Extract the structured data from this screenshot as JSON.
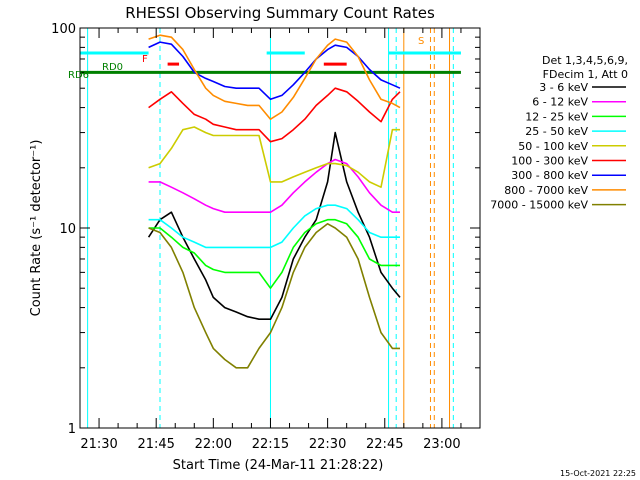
{
  "chart_data": {
    "type": "line",
    "title": "RHESSI Observing Summary Count Rates",
    "xlabel": "Start Time (24-Mar-11 21:28:22)",
    "ylabel": "Count Rate (s⁻¹ detector⁻¹)",
    "yscale": "log",
    "ylim": [
      1,
      100
    ],
    "xlim": [
      "21:25",
      "23:10"
    ],
    "x_ticks": [
      "21:30",
      "21:45",
      "22:00",
      "22:15",
      "22:30",
      "22:45",
      "23:00"
    ],
    "y_ticks": [
      "1",
      "10",
      "100"
    ],
    "footer_date": "15-Oct-2021 22:25",
    "legend": {
      "header": [
        "Det 1,3,4,5,6,9,",
        "FDecim 1, Att 0"
      ],
      "entries": [
        {
          "label": "3 - 6 keV",
          "color": "#000000"
        },
        {
          "label": "6 - 12 keV",
          "color": "#ff00ff"
        },
        {
          "label": "12 - 25 keV",
          "color": "#00ff00"
        },
        {
          "label": "25 - 50 keV",
          "color": "#00ffff"
        },
        {
          "label": "50 - 100 keV",
          "color": "#cccc00"
        },
        {
          "label": "100 - 300 keV",
          "color": "#ff0000"
        },
        {
          "label": "300 - 800 keV",
          "color": "#0000ff"
        },
        {
          "label": "800 - 7000 keV",
          "color": "#ff8c00"
        },
        {
          "label": "7000 - 15000 keV",
          "color": "#808000"
        }
      ]
    },
    "annotations": {
      "rd0": "RD0",
      "rd6": "RD6",
      "f": "F",
      "s": "S",
      "rd0_level": 75,
      "rd6_level": 60
    },
    "series": [
      {
        "name": "3 - 6 keV",
        "color": "#000000",
        "x": [
          "21:43",
          "21:46",
          "21:49",
          "21:52",
          "21:55",
          "21:58",
          "22:00",
          "22:03",
          "22:06",
          "22:09",
          "22:12",
          "22:15",
          "22:18",
          "22:21",
          "22:24",
          "22:27",
          "22:30",
          "22:32",
          "22:35",
          "22:38",
          "22:41",
          "22:44",
          "22:47",
          "22:49"
        ],
        "y": [
          9,
          11,
          12,
          9,
          7,
          5.5,
          4.5,
          4,
          3.8,
          3.6,
          3.5,
          3.5,
          4.5,
          7,
          9,
          11,
          17,
          30,
          17,
          12,
          9,
          6,
          5,
          4.5
        ]
      },
      {
        "name": "6 - 12 keV",
        "color": "#ff00ff",
        "x": [
          "21:43",
          "21:46",
          "21:49",
          "21:52",
          "21:55",
          "21:58",
          "22:00",
          "22:03",
          "22:06",
          "22:09",
          "22:12",
          "22:15",
          "22:18",
          "22:21",
          "22:24",
          "22:27",
          "22:30",
          "22:32",
          "22:35",
          "22:38",
          "22:41",
          "22:44",
          "22:47",
          "22:49"
        ],
        "y": [
          17,
          17,
          16,
          15,
          14,
          13,
          12.5,
          12,
          12,
          12,
          12,
          12,
          13,
          15,
          17,
          19,
          21,
          22,
          21,
          18,
          15,
          13,
          12,
          12
        ]
      },
      {
        "name": "12 - 25 keV",
        "color": "#00ff00",
        "x": [
          "21:43",
          "21:46",
          "21:49",
          "21:52",
          "21:55",
          "21:58",
          "22:00",
          "22:03",
          "22:06",
          "22:09",
          "22:12",
          "22:15",
          "22:18",
          "22:21",
          "22:24",
          "22:27",
          "22:30",
          "22:32",
          "22:35",
          "22:38",
          "22:41",
          "22:44",
          "22:47",
          "22:49"
        ],
        "y": [
          10,
          10,
          9,
          8,
          7.5,
          6.5,
          6.2,
          6,
          6,
          6,
          6,
          5,
          6,
          8,
          9.5,
          10.5,
          11,
          11,
          10.5,
          9,
          7,
          6.5,
          6.5,
          6.5
        ]
      },
      {
        "name": "25 - 50 keV",
        "color": "#00ffff",
        "x": [
          "21:43",
          "21:46",
          "21:49",
          "21:52",
          "21:55",
          "21:58",
          "22:00",
          "22:03",
          "22:06",
          "22:09",
          "22:12",
          "22:15",
          "22:18",
          "22:21",
          "22:24",
          "22:27",
          "22:30",
          "22:32",
          "22:35",
          "22:38",
          "22:41",
          "22:44",
          "22:47",
          "22:49"
        ],
        "y": [
          11,
          11,
          10,
          9,
          8.5,
          8,
          8,
          8,
          8,
          8,
          8,
          8,
          8.5,
          10,
          11.5,
          12.5,
          13,
          13,
          12.5,
          11,
          9.5,
          9,
          9,
          9
        ]
      },
      {
        "name": "50 - 100 keV",
        "color": "#cccc00",
        "x": [
          "21:43",
          "21:46",
          "21:49",
          "21:52",
          "21:55",
          "21:58",
          "22:00",
          "22:03",
          "22:06",
          "22:09",
          "22:12",
          "22:15",
          "22:18",
          "22:21",
          "22:24",
          "22:27",
          "22:30",
          "22:32",
          "22:35",
          "22:38",
          "22:41",
          "22:44",
          "22:47",
          "22:49"
        ],
        "y": [
          20,
          21,
          25,
          31,
          32,
          30,
          29,
          29,
          29,
          29,
          29,
          17,
          17,
          18,
          19,
          20,
          21,
          21,
          20.5,
          19,
          17,
          16,
          31,
          31
        ]
      },
      {
        "name": "100 - 300 keV",
        "color": "#ff0000",
        "x": [
          "21:43",
          "21:46",
          "21:49",
          "21:52",
          "21:55",
          "21:58",
          "22:00",
          "22:03",
          "22:06",
          "22:09",
          "22:12",
          "22:15",
          "22:18",
          "22:21",
          "22:24",
          "22:27",
          "22:30",
          "22:32",
          "22:35",
          "22:38",
          "22:41",
          "22:44",
          "22:47",
          "22:49"
        ],
        "y": [
          40,
          44,
          48,
          42,
          37,
          35,
          33,
          32,
          31,
          31,
          31,
          27,
          28,
          31,
          35,
          41,
          46,
          50,
          48,
          43,
          38,
          34,
          44,
          48
        ]
      },
      {
        "name": "300 - 800 keV",
        "color": "#0000ff",
        "x": [
          "21:43",
          "21:46",
          "21:49",
          "21:52",
          "21:55",
          "21:58",
          "22:00",
          "22:03",
          "22:06",
          "22:09",
          "22:12",
          "22:15",
          "22:18",
          "22:21",
          "22:24",
          "22:27",
          "22:30",
          "22:32",
          "22:35",
          "22:38",
          "22:41",
          "22:44",
          "22:47",
          "22:49"
        ],
        "y": [
          80,
          85,
          83,
          72,
          60,
          56,
          54,
          51,
          50,
          50,
          50,
          44,
          46,
          52,
          60,
          70,
          78,
          82,
          80,
          72,
          62,
          55,
          52,
          50
        ]
      },
      {
        "name": "800 - 7000 keV",
        "color": "#ff8c00",
        "x": [
          "21:43",
          "21:46",
          "21:49",
          "21:52",
          "21:55",
          "21:58",
          "22:00",
          "22:03",
          "22:06",
          "22:09",
          "22:12",
          "22:15",
          "22:18",
          "22:21",
          "22:24",
          "22:27",
          "22:30",
          "22:32",
          "22:35",
          "22:38",
          "22:41",
          "22:44",
          "22:47",
          "22:49"
        ],
        "y": [
          88,
          92,
          90,
          78,
          62,
          50,
          46,
          43,
          42,
          41,
          41,
          35,
          38,
          45,
          56,
          70,
          82,
          88,
          85,
          72,
          55,
          44,
          42,
          40
        ]
      },
      {
        "name": "7000 - 15000 keV",
        "color": "#808000",
        "x": [
          "21:43",
          "21:46",
          "21:49",
          "21:52",
          "21:55",
          "21:58",
          "22:00",
          "22:03",
          "22:06",
          "22:09",
          "22:12",
          "22:15",
          "22:18",
          "22:21",
          "22:24",
          "22:27",
          "22:30",
          "22:32",
          "22:35",
          "22:38",
          "22:41",
          "22:44",
          "22:47",
          "22:49"
        ],
        "y": [
          10,
          9.5,
          8,
          6,
          4,
          3,
          2.5,
          2.2,
          2.0,
          2.0,
          2.5,
          3,
          4,
          6,
          8,
          9.5,
          10.5,
          10,
          9,
          7,
          4.5,
          3,
          2.5,
          2.5
        ]
      }
    ],
    "vertical_lines": [
      {
        "x": "21:27",
        "color": "#00ffff",
        "style": "solid"
      },
      {
        "x": "21:46",
        "color": "#00ffff",
        "style": "dashed"
      },
      {
        "x": "22:15",
        "color": "#00ffff",
        "style": "solid"
      },
      {
        "x": "22:46",
        "color": "#00ffff",
        "style": "solid"
      },
      {
        "x": "22:48",
        "color": "#00ffff",
        "style": "dashed"
      },
      {
        "x": "22:50",
        "color": "#ff8c00",
        "style": "solid"
      },
      {
        "x": "22:57",
        "color": "#ff8c00",
        "style": "dashed"
      },
      {
        "x": "22:58",
        "color": "#ff8c00",
        "style": "dashed"
      },
      {
        "x": "23:02",
        "color": "#ff8c00",
        "style": "solid"
      },
      {
        "x": "23:03",
        "color": "#00ffff",
        "style": "dashed"
      }
    ],
    "segments": [
      {
        "name": "rd0-bar",
        "color": "#00ffff",
        "level": 75,
        "ranges": [
          [
            "21:25",
            "21:43"
          ],
          [
            "22:14",
            "22:24"
          ],
          [
            "22:46",
            "23:05"
          ]
        ]
      },
      {
        "name": "rd6-bar",
        "color": "#008000",
        "level": 60,
        "ranges": [
          [
            "21:25",
            "23:05"
          ]
        ]
      },
      {
        "name": "flag-bar",
        "color": "#ff0000",
        "level": 66,
        "ranges": [
          [
            "21:48",
            "21:51"
          ],
          [
            "22:29",
            "22:35"
          ]
        ]
      }
    ]
  }
}
